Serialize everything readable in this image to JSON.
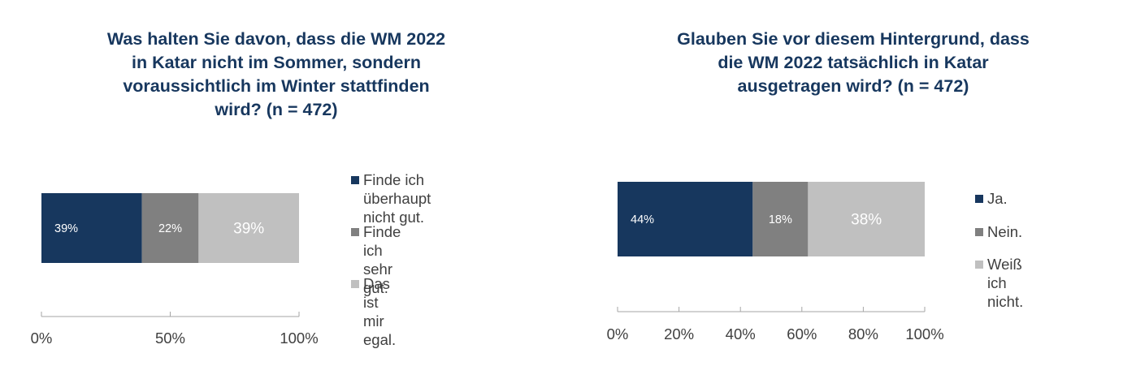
{
  "colors": {
    "dark_blue": "#17375e",
    "dark_gray": "#808080",
    "light_gray": "#c0c0c0",
    "axis": "#a6a6a6"
  },
  "chart_data": [
    {
      "type": "bar",
      "orientation": "horizontal",
      "stacked": true,
      "title": "Was halten Sie davon, dass die WM 2022\nin Katar nicht im Sommer, sondern\nvoraussichtlich im Winter stattfinden\nwird? (n = 472)",
      "xlim": [
        0,
        100
      ],
      "xticks": [
        "0%",
        "50%",
        "100%"
      ],
      "grid": false,
      "legend_position": "right",
      "series": [
        {
          "name": "Finde ich überhaupt\nnicht gut.",
          "value": 39,
          "label": "39%",
          "color": "#17375e"
        },
        {
          "name": "Finde ich sehr gut.",
          "value": 22,
          "label": "22%",
          "color": "#808080"
        },
        {
          "name": "Das ist mir egal.",
          "value": 39,
          "label": "39%",
          "color": "#c0c0c0"
        }
      ]
    },
    {
      "type": "bar",
      "orientation": "horizontal",
      "stacked": true,
      "title": "Glauben Sie vor diesem Hintergrund, dass\ndie WM 2022 tatsächlich in Katar\nausgetragen wird? (n = 472)",
      "xlim": [
        0,
        100
      ],
      "xticks": [
        "0%",
        "20%",
        "40%",
        "60%",
        "80%",
        "100%"
      ],
      "grid": false,
      "legend_position": "right",
      "series": [
        {
          "name": "Ja.",
          "value": 44,
          "label": "44%",
          "color": "#17375e"
        },
        {
          "name": "Nein.",
          "value": 18,
          "label": "18%",
          "color": "#808080"
        },
        {
          "name": "Weiß ich nicht.",
          "value": 38,
          "label": "38%",
          "color": "#c0c0c0"
        }
      ]
    }
  ]
}
